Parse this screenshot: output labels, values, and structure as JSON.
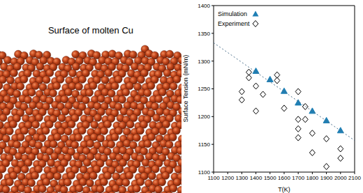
{
  "image": {
    "caption": "Surface of molten Cu"
  },
  "chart_data": {
    "type": "scatter",
    "x_label": "T(K)",
    "y_label": "Surface Tension (mN/m)",
    "xlim": [
      1100,
      2100
    ],
    "xticks": [
      1100,
      1200,
      1300,
      1400,
      1500,
      1600,
      1700,
      1800,
      1900,
      2000,
      2100
    ],
    "ylim": [
      1100,
      1400
    ],
    "yticks": [
      1100,
      1150,
      1200,
      1250,
      1300,
      1350,
      1400
    ],
    "grid": false,
    "legend": "upper left",
    "series": [
      {
        "name": "Simulation",
        "type": "scatter",
        "marker": "triangle",
        "color": "#1f7fb4",
        "x": [
          1400,
          1500,
          1600,
          1700,
          1800,
          1900,
          2000
        ],
        "values": [
          1282,
          1267,
          1246,
          1225,
          1210,
          1193,
          1175
        ]
      },
      {
        "name": "Experiment",
        "type": "scatter",
        "marker": "diamond",
        "color": "#000000",
        "x": [
          1300,
          1300,
          1350,
          1350,
          1400,
          1400,
          1450,
          1550,
          1550,
          1600,
          1700,
          1700,
          1700,
          1700,
          1750,
          1750,
          1800,
          1800,
          1900,
          1900,
          2000,
          2000
        ],
        "values": [
          1245,
          1230,
          1280,
          1270,
          1255,
          1210,
          1240,
          1275,
          1265,
          1215,
          1245,
          1195,
          1178,
          1162,
          1195,
          1218,
          1170,
          1135,
          1110,
          1160,
          1125,
          1142
        ]
      },
      {
        "type": "line",
        "line_style": "dotted",
        "color": "#4a6f8a",
        "x": [
          1100,
          2100
        ],
        "values": [
          1333,
          1157
        ]
      }
    ]
  }
}
